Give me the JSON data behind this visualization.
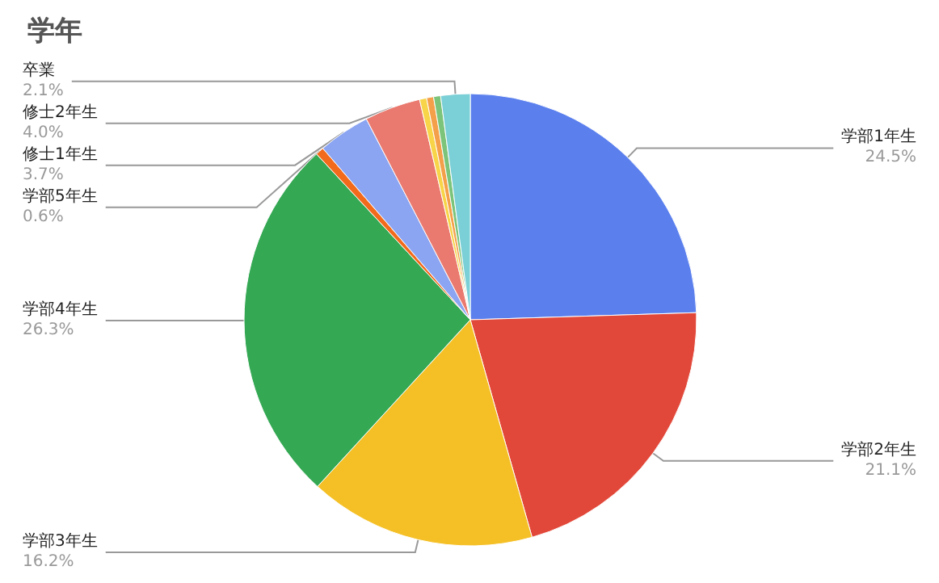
{
  "chart_data": {
    "type": "pie",
    "title": "学年",
    "categories": [
      "学部1年生",
      "学部2年生",
      "学部3年生",
      "学部4年生",
      "学部5年生",
      "修士1年生",
      "修士2年生",
      null,
      null,
      null,
      "卒業"
    ],
    "values": [
      24.5,
      21.1,
      16.2,
      26.3,
      0.6,
      3.7,
      4.0,
      0.5,
      0.5,
      0.5,
      2.1
    ],
    "value_labels": [
      "24.5%",
      "21.1%",
      "16.2%",
      "26.3%",
      "0.6%",
      "3.7%",
      "4.0%",
      null,
      null,
      null,
      "2.1%"
    ],
    "colors": [
      "#5b80ee",
      "#e2483a",
      "#f5c026",
      "#34a853",
      "#f26b1d",
      "#8ba5f2",
      "#ea7a6f",
      "#f7d448",
      "#f4a04a",
      "#7cc47a",
      "#7bcfd6"
    ],
    "legend": false
  }
}
